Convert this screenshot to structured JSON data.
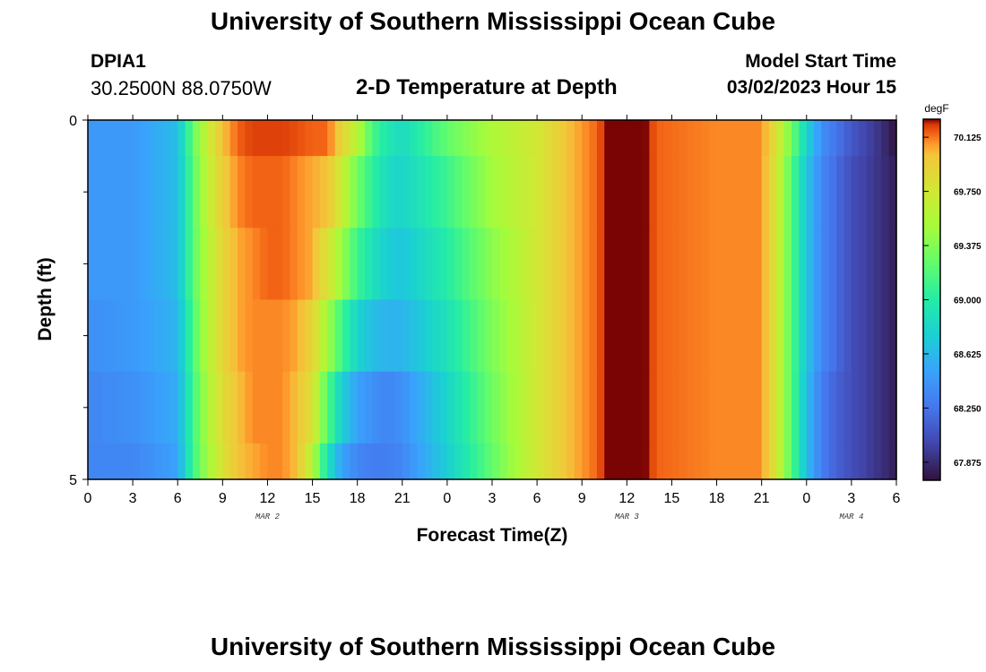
{
  "header": {
    "title": "University of Southern Mississippi Ocean Cube",
    "station": "DPIA1",
    "coordinates": "30.2500N  88.0750W",
    "subtitle": "2-D Temperature at Depth",
    "model_start_label": "Model Start Time",
    "model_start_value": "03/02/2023 Hour 15"
  },
  "footer": {
    "title": "University of Southern Mississippi Ocean Cube"
  },
  "chart_data": {
    "type": "heatmap",
    "title": "2-D Temperature at Depth",
    "xlabel": "Forecast Time(Z)",
    "ylabel": "Depth (ft)",
    "x_range_hours": [
      0,
      54
    ],
    "x_tick_hours": [
      0,
      3,
      6,
      9,
      12,
      15,
      18,
      21,
      24,
      27,
      30,
      33,
      36,
      39,
      42,
      45,
      48,
      51,
      54
    ],
    "x_tick_labels": [
      "0",
      "3",
      "6",
      "9",
      "12",
      "15",
      "18",
      "21",
      "0",
      "3",
      "6",
      "9",
      "12",
      "15",
      "18",
      "21",
      "0",
      "3",
      "6"
    ],
    "date_labels": [
      {
        "text": "MAR 2",
        "hour": 12
      },
      {
        "text": "MAR 3",
        "hour": 36
      },
      {
        "text": "MAR 4",
        "hour": 51
      }
    ],
    "y_range_ft": [
      0,
      5
    ],
    "y_tick_labels": [
      "0",
      "5"
    ],
    "y_minor_ticks_ft": [
      1,
      2,
      3,
      4
    ],
    "depth_layers_ft": [
      0,
      1,
      2,
      3,
      4,
      5
    ],
    "colorbar": {
      "unit": "degF",
      "min": 67.75,
      "max": 70.25,
      "ticks": [
        "70.125",
        "69.750",
        "69.375",
        "69.000",
        "68.625",
        "68.250",
        "67.875"
      ],
      "tick_values": [
        70.125,
        69.75,
        69.375,
        69.0,
        68.625,
        68.25,
        67.875
      ]
    },
    "time_hours": [
      0,
      3,
      6,
      7,
      8,
      9,
      10,
      11,
      12,
      13,
      14,
      15,
      16,
      17,
      18,
      19,
      20,
      21,
      24,
      27,
      30,
      32,
      34,
      35,
      36,
      37,
      38,
      42,
      45,
      46,
      47,
      48,
      49,
      50,
      51,
      53,
      54
    ],
    "values_degF": [
      [
        68.45,
        68.45,
        68.65,
        69.25,
        69.7,
        70.0,
        70.15,
        70.2,
        70.2,
        70.2,
        70.18,
        70.15,
        70.15,
        69.9,
        69.6,
        69.15,
        68.95,
        68.85,
        69.25,
        69.55,
        69.75,
        70.0,
        70.15,
        70.3,
        70.3,
        70.28,
        70.15,
        70.1,
        70.1,
        69.8,
        69.3,
        68.8,
        68.4,
        68.25,
        68.1,
        67.9,
        67.75
      ],
      [
        68.45,
        68.45,
        68.65,
        69.2,
        69.65,
        69.95,
        70.1,
        70.15,
        70.15,
        70.15,
        70.1,
        70.05,
        70.0,
        69.7,
        69.3,
        69.05,
        68.85,
        68.8,
        69.1,
        69.5,
        69.75,
        70.0,
        70.15,
        70.3,
        70.3,
        70.28,
        70.15,
        70.1,
        70.1,
        69.75,
        69.2,
        68.7,
        68.35,
        68.2,
        68.05,
        67.9,
        67.8
      ],
      [
        68.45,
        68.45,
        68.65,
        69.2,
        69.6,
        69.9,
        70.05,
        70.1,
        70.15,
        70.15,
        70.1,
        70.05,
        69.8,
        69.45,
        69.1,
        68.9,
        68.75,
        68.7,
        69.0,
        69.4,
        69.75,
        70.0,
        70.15,
        70.3,
        70.3,
        70.28,
        70.15,
        70.1,
        70.1,
        69.75,
        69.2,
        68.7,
        68.35,
        68.2,
        68.05,
        67.9,
        67.8
      ],
      [
        68.4,
        68.45,
        68.6,
        69.15,
        69.6,
        69.9,
        70.05,
        70.1,
        70.1,
        70.1,
        70.05,
        69.9,
        69.5,
        69.1,
        68.8,
        68.65,
        68.6,
        68.6,
        68.9,
        69.35,
        69.75,
        70.0,
        70.15,
        70.3,
        70.3,
        70.28,
        70.15,
        70.1,
        70.1,
        69.75,
        69.2,
        68.7,
        68.35,
        68.2,
        68.05,
        67.9,
        67.8
      ],
      [
        68.35,
        68.4,
        68.55,
        69.1,
        69.55,
        69.85,
        70.0,
        70.1,
        70.1,
        70.1,
        70.0,
        69.8,
        69.2,
        68.75,
        68.5,
        68.4,
        68.35,
        68.4,
        68.8,
        69.3,
        69.75,
        70.0,
        70.15,
        70.3,
        70.3,
        70.28,
        70.15,
        70.1,
        70.1,
        69.75,
        69.2,
        68.65,
        68.3,
        68.15,
        68.05,
        67.9,
        67.8
      ],
      [
        68.35,
        68.35,
        68.5,
        69.1,
        69.5,
        69.8,
        70.0,
        70.05,
        70.1,
        70.1,
        70.0,
        69.6,
        68.9,
        68.5,
        68.35,
        68.3,
        68.3,
        68.35,
        68.75,
        69.25,
        69.75,
        70.0,
        70.15,
        70.3,
        70.3,
        70.28,
        70.15,
        70.1,
        70.1,
        69.75,
        69.2,
        68.65,
        68.3,
        68.15,
        68.05,
        67.9,
        67.8
      ]
    ]
  }
}
